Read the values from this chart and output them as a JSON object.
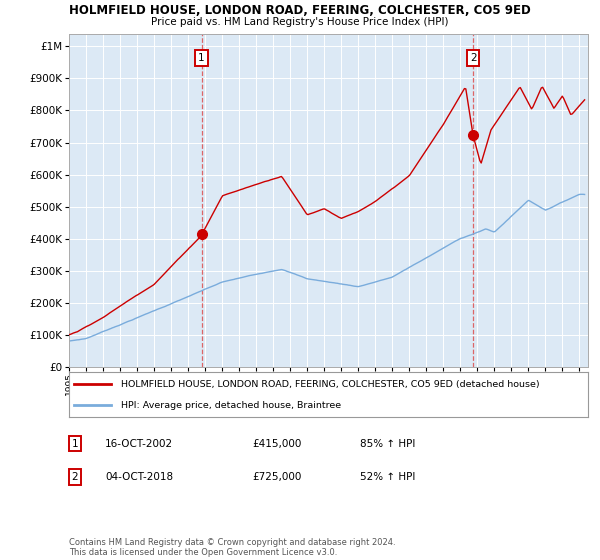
{
  "title": "HOLMFIELD HOUSE, LONDON ROAD, FEERING, COLCHESTER, CO5 9ED",
  "subtitle": "Price paid vs. HM Land Registry's House Price Index (HPI)",
  "red_label": "HOLMFIELD HOUSE, LONDON ROAD, FEERING, COLCHESTER, CO5 9ED (detached house)",
  "blue_label": "HPI: Average price, detached house, Braintree",
  "annotation1_date": "16-OCT-2002",
  "annotation1_price": "£415,000",
  "annotation1_hpi": "85% ↑ HPI",
  "annotation2_date": "04-OCT-2018",
  "annotation2_price": "£725,000",
  "annotation2_hpi": "52% ↑ HPI",
  "footnote": "Contains HM Land Registry data © Crown copyright and database right 2024.\nThis data is licensed under the Open Government Licence v3.0.",
  "sale1_year": 2002.79,
  "sale1_price": 415000,
  "sale2_year": 2018.75,
  "sale2_price": 725000,
  "ylim_min": 0,
  "ylim_max": 1000000,
  "xlim_start": 1995.0,
  "xlim_end": 2025.5,
  "red_color": "#cc0000",
  "blue_color": "#7aacdc",
  "plot_bg_color": "#dce9f5",
  "bg_color": "#ffffff",
  "grid_color": "#ffffff",
  "vline_color": "#dd4444"
}
